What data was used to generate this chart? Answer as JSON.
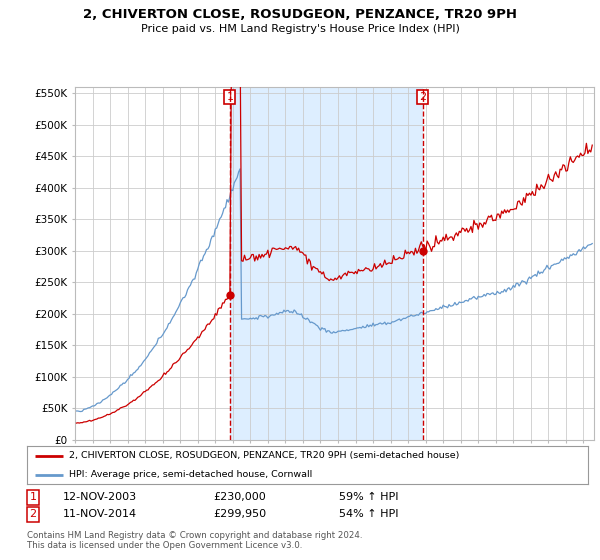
{
  "title": "2, CHIVERTON CLOSE, ROSUDGEON, PENZANCE, TR20 9PH",
  "subtitle": "Price paid vs. HM Land Registry's House Price Index (HPI)",
  "ylim": [
    0,
    560000
  ],
  "yticks": [
    0,
    50000,
    100000,
    150000,
    200000,
    250000,
    300000,
    350000,
    400000,
    450000,
    500000,
    550000
  ],
  "ytick_labels": [
    "£0",
    "£50K",
    "£100K",
    "£150K",
    "£200K",
    "£250K",
    "£300K",
    "£350K",
    "£400K",
    "£450K",
    "£500K",
    "£550K"
  ],
  "sale1_date": "12-NOV-2003",
  "sale1_price": 230000,
  "sale1_hpi_label": "59% ↑ HPI",
  "sale2_date": "11-NOV-2014",
  "sale2_price": 299950,
  "sale2_hpi_label": "54% ↑ HPI",
  "red_line_color": "#cc0000",
  "blue_line_color": "#6699cc",
  "shade_color": "#ddeeff",
  "vline_color": "#cc0000",
  "legend_label1": "2, CHIVERTON CLOSE, ROSUDGEON, PENZANCE, TR20 9PH (semi-detached house)",
  "legend_label2": "HPI: Average price, semi-detached house, Cornwall",
  "footer": "Contains HM Land Registry data © Crown copyright and database right 2024.\nThis data is licensed under the Open Government Licence v3.0.",
  "background_color": "#ffffff",
  "grid_color": "#cccccc"
}
